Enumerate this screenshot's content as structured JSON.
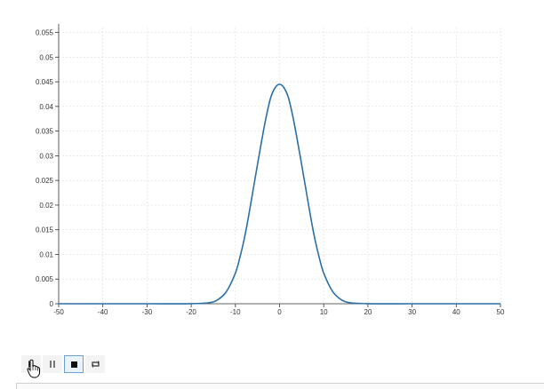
{
  "chart_data": {
    "type": "line",
    "xlabel": "",
    "ylabel": "",
    "xlim": [
      -50,
      50
    ],
    "ylim": [
      0,
      0.056
    ],
    "x_ticks": [
      "-50",
      "-40",
      "-30",
      "-20",
      "-10",
      "0",
      "10",
      "20",
      "30",
      "40",
      "50"
    ],
    "y_ticks": [
      "0",
      "0.005",
      "0.01",
      "0.015",
      "0.02",
      "0.025",
      "0.03",
      "0.035",
      "0.04",
      "0.045",
      "0.05",
      "0.055"
    ],
    "grid": true,
    "legend": "none",
    "series": [
      {
        "color": "#2c6fa6",
        "x": [
          -50,
          -40,
          -30,
          -20,
          -16,
          -14,
          -12,
          -10,
          -9,
          -8,
          -7,
          -6,
          -5,
          -4,
          -3,
          -2,
          -1,
          0,
          1,
          2,
          3,
          4,
          5,
          6,
          7,
          8,
          9,
          10,
          12,
          14,
          16,
          20,
          30,
          40,
          50
        ],
        "y": [
          0,
          0,
          0,
          1e-05,
          0.0002,
          0.0008,
          0.0025,
          0.0062,
          0.0093,
          0.0131,
          0.0178,
          0.023,
          0.0282,
          0.0333,
          0.038,
          0.0418,
          0.0438,
          0.0445,
          0.0438,
          0.0418,
          0.038,
          0.0333,
          0.0282,
          0.023,
          0.0178,
          0.0131,
          0.0093,
          0.0062,
          0.0025,
          0.0008,
          0.0002,
          1e-05,
          0,
          0,
          0
        ]
      }
    ]
  },
  "controls": {
    "play": "play-icon",
    "pause": "pause-icon",
    "stop": "stop-icon",
    "loop": "loop-icon"
  }
}
